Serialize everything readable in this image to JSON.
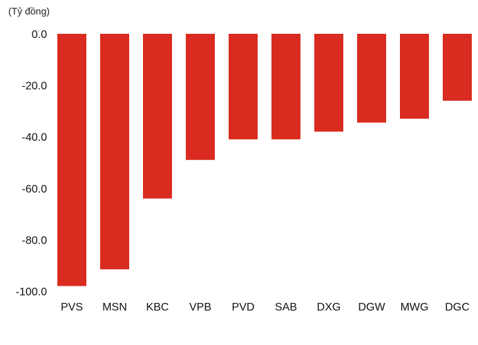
{
  "chart_data": {
    "type": "bar",
    "unit_label": "(Tỷ đồng)",
    "categories": [
      "PVS",
      "MSN",
      "KBC",
      "VPB",
      "PVD",
      "SAB",
      "DXG",
      "DGW",
      "MWG",
      "DGC"
    ],
    "values": [
      -98.0,
      -91.5,
      -64.0,
      -49.0,
      -41.0,
      -41.0,
      -38.0,
      -34.5,
      -33.0,
      -26.0
    ],
    "ylim": [
      -100,
      0
    ],
    "yticks": [
      0,
      -20,
      -40,
      -60,
      -80,
      -100
    ],
    "ytick_labels": [
      "0.0",
      "-20.0",
      "-40.0",
      "-60.0",
      "-80.0",
      "-100.0"
    ],
    "bar_color": "#d92b1f",
    "grid": false,
    "legend": "none"
  }
}
